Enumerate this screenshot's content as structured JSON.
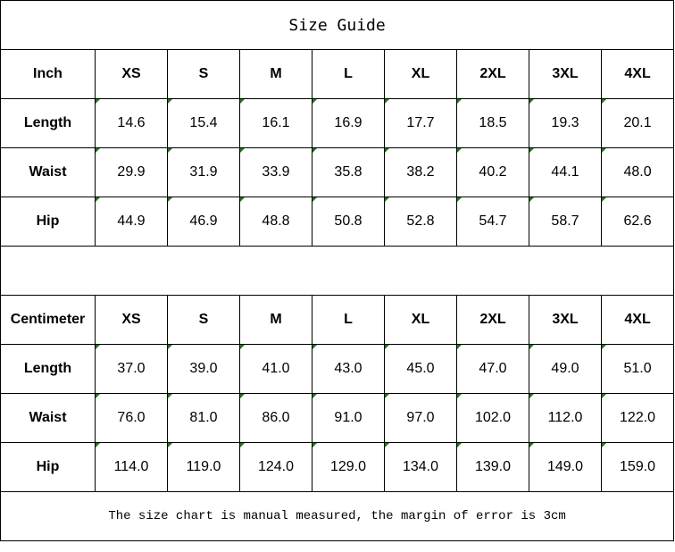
{
  "title": "Size Guide",
  "sizes": [
    "XS",
    "S",
    "M",
    "L",
    "XL",
    "2XL",
    "3XL",
    "4XL"
  ],
  "inch": {
    "unit_label": "Inch",
    "rows": [
      {
        "label": "Length",
        "values": [
          "14.6",
          "15.4",
          "16.1",
          "16.9",
          "17.7",
          "18.5",
          "19.3",
          "20.1"
        ]
      },
      {
        "label": "Waist",
        "values": [
          "29.9",
          "31.9",
          "33.9",
          "35.8",
          "38.2",
          "40.2",
          "44.1",
          "48.0"
        ]
      },
      {
        "label": "Hip",
        "values": [
          "44.9",
          "46.9",
          "48.8",
          "50.8",
          "52.8",
          "54.7",
          "58.7",
          "62.6"
        ]
      }
    ]
  },
  "cm": {
    "unit_label": "Centimeter",
    "rows": [
      {
        "label": "Length",
        "values": [
          "37.0",
          "39.0",
          "41.0",
          "43.0",
          "45.0",
          "47.0",
          "49.0",
          "51.0"
        ]
      },
      {
        "label": "Waist",
        "values": [
          "76.0",
          "81.0",
          "86.0",
          "91.0",
          "97.0",
          "102.0",
          "112.0",
          "122.0"
        ]
      },
      {
        "label": "Hip",
        "values": [
          "114.0",
          "119.0",
          "124.0",
          "129.0",
          "134.0",
          "139.0",
          "149.0",
          "159.0"
        ]
      }
    ]
  },
  "note": "The size chart is manual measured, the margin of error is 3cm",
  "colors": {
    "comment_marker": "#1a7a1a",
    "border": "#000000"
  }
}
